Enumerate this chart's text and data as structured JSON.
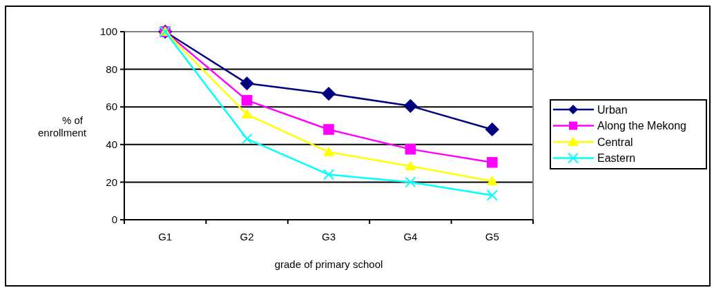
{
  "chart_data": {
    "type": "line",
    "xlabel": "grade of primary school",
    "ylabel": "% of enrollment",
    "categories": [
      "G1",
      "G2",
      "G3",
      "G4",
      "G5"
    ],
    "ylim": [
      0,
      100
    ],
    "yticks": [
      0,
      20,
      40,
      60,
      80,
      100
    ],
    "grid": "y",
    "legend": "right",
    "series": [
      {
        "name": "Urban",
        "color": "#000080",
        "marker": "diamond",
        "values": [
          100,
          72.5,
          67,
          60.5,
          48
        ]
      },
      {
        "name": "Along the Mekong",
        "color": "#ff00ff",
        "marker": "square",
        "values": [
          100,
          63.5,
          48,
          37.5,
          30.5
        ]
      },
      {
        "name": "Central",
        "color": "#ffff00",
        "marker": "triangle",
        "values": [
          100,
          56,
          36,
          28.5,
          20.5
        ]
      },
      {
        "name": "Eastern",
        "color": "#00ffff",
        "marker": "cross",
        "values": [
          100,
          43,
          24,
          20,
          13
        ]
      }
    ]
  }
}
